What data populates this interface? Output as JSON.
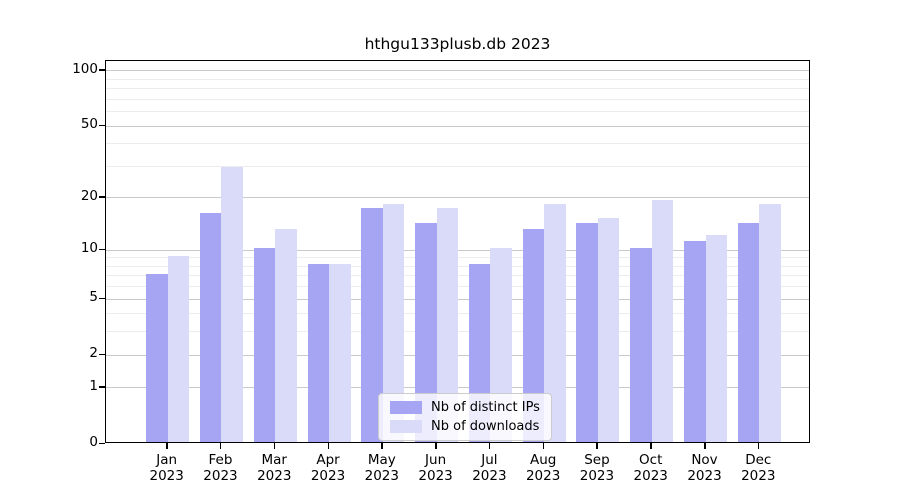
{
  "chart_data": {
    "type": "bar",
    "title": "hthgu133plusb.db 2023",
    "categories": [
      "Jan",
      "Feb",
      "Mar",
      "Apr",
      "May",
      "Jun",
      "Jul",
      "Aug",
      "Sep",
      "Oct",
      "Nov",
      "Dec"
    ],
    "year_label": "2023",
    "series": [
      {
        "name": "Nb of distinct IPs",
        "color": "#a5a5f3",
        "values": [
          7,
          16,
          10,
          8,
          17,
          14,
          8,
          13,
          14,
          10,
          11,
          14
        ]
      },
      {
        "name": "Nb of downloads",
        "color": "#dadaf9",
        "values": [
          9,
          29,
          13,
          8,
          18,
          17,
          10,
          18,
          15,
          19,
          12,
          18
        ]
      }
    ],
    "y_axis": {
      "scale": "log10(value+1)",
      "ylim": [
        0,
        100
      ],
      "tick_values": [
        0,
        1,
        2,
        5,
        10,
        20,
        50,
        100
      ],
      "tick_labels": [
        "0",
        "1",
        "2",
        "5",
        "10",
        "20",
        "50",
        "100"
      ],
      "minor_grid_values": [
        3,
        4,
        6,
        7,
        8,
        9,
        30,
        40,
        60,
        70,
        80,
        90
      ]
    },
    "legend": {
      "position": "bottom-center",
      "entries": [
        "Nb of distinct IPs",
        "Nb of downloads"
      ]
    },
    "colors": {
      "major_grid": "#c9c9c9",
      "minor_grid": "#ededed",
      "axis": "#000000",
      "background": "#ffffff"
    },
    "grid": true
  }
}
